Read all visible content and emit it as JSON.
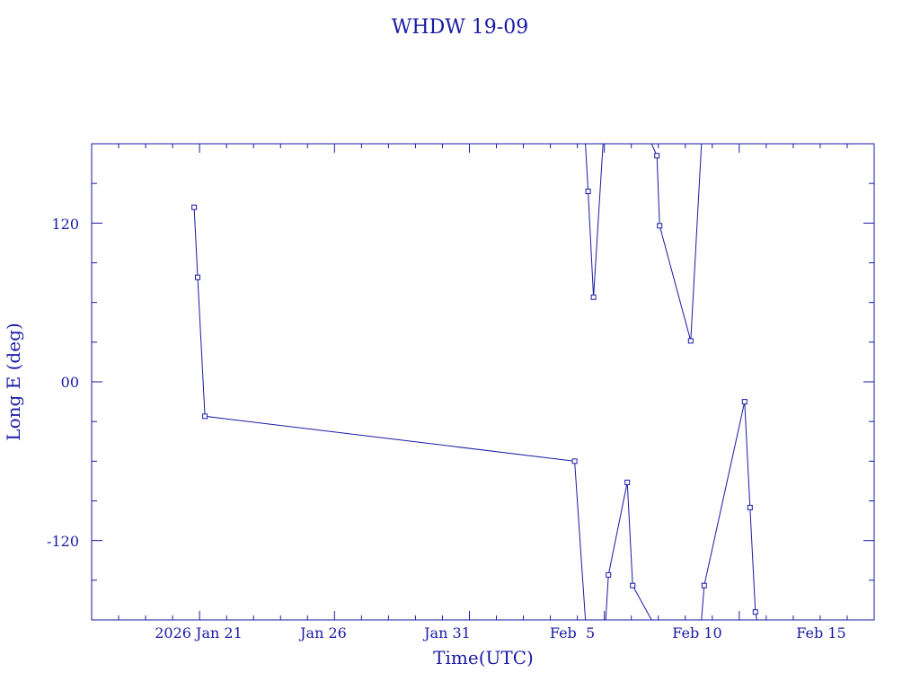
{
  "chart_data": {
    "type": "line",
    "title": "WHDW 19-09",
    "xlabel": "Time(UTC)",
    "ylabel": "Long E (deg)",
    "x_tick_labels": [
      "2026 Jan 21",
      "Jan 26",
      "Jan 31",
      "Feb  5",
      "Feb 10",
      "Feb 15"
    ],
    "y_tick_labels": [
      "120",
      "00",
      "-120"
    ],
    "xlim_days": [
      0,
      29
    ],
    "ylim": [
      -180,
      180
    ],
    "colors": {
      "line": "#1a1aa6"
    },
    "series": [
      {
        "marker": "square",
        "points_day_lon": [
          [
            3.8,
            132
          ],
          [
            3.93,
            79
          ],
          [
            4.2,
            -26
          ],
          [
            17.9,
            -60
          ],
          [
            18.3,
            -180
          ]
        ]
      },
      {
        "marker": "none",
        "points_day_lon": [
          [
            18.3,
            180
          ],
          [
            18.4,
            144
          ],
          [
            18.6,
            64
          ],
          [
            18.95,
            180
          ]
        ]
      },
      {
        "marker": "square",
        "points_day_lon": [
          [
            19.05,
            -180
          ],
          [
            19.15,
            -146
          ],
          [
            19.85,
            -76
          ],
          [
            20.05,
            -154
          ],
          [
            20.75,
            -180
          ]
        ]
      },
      {
        "marker": "square",
        "points_day_lon": [
          [
            20.75,
            180
          ],
          [
            20.95,
            171
          ],
          [
            21.05,
            118
          ],
          [
            22.2,
            31
          ],
          [
            22.6,
            180
          ]
        ]
      },
      {
        "marker": "square",
        "points_day_lon": [
          [
            22.6,
            -180
          ],
          [
            22.7,
            -154
          ],
          [
            24.2,
            -15
          ],
          [
            24.4,
            -95
          ],
          [
            24.6,
            -174
          ],
          [
            24.65,
            -180
          ]
        ]
      }
    ]
  }
}
